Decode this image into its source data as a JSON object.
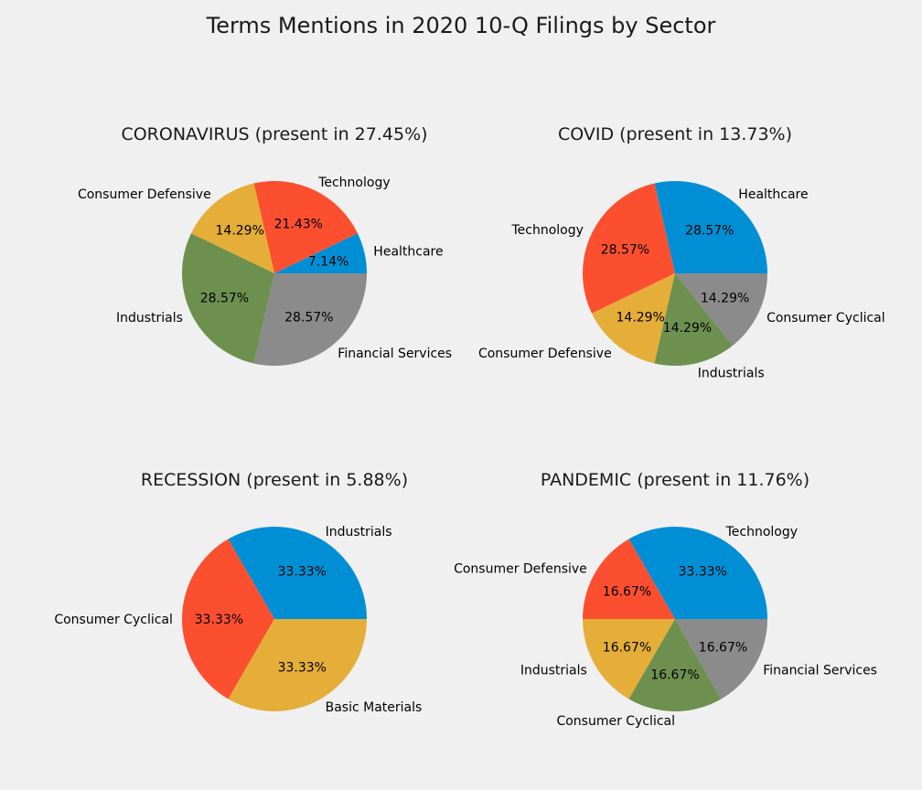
{
  "figure": {
    "title": "Terms Mentions in 2020 10-Q Filings by Sector"
  },
  "chart_data": [
    {
      "type": "pie",
      "title": "CORONAVIRUS (present in 27.45%)",
      "slices": [
        {
          "label": "Healthcare",
          "value": 7.14,
          "pct": "7.14%",
          "color": "#008fd5"
        },
        {
          "label": "Technology",
          "value": 21.43,
          "pct": "21.43%",
          "color": "#fc4f30"
        },
        {
          "label": "Consumer Defensive",
          "value": 14.29,
          "pct": "14.29%",
          "color": "#e5ae38"
        },
        {
          "label": "Industrials",
          "value": 28.57,
          "pct": "28.57%",
          "color": "#6d904f"
        },
        {
          "label": "Financial Services",
          "value": 28.57,
          "pct": "28.57%",
          "color": "#8b8b8b"
        }
      ]
    },
    {
      "type": "pie",
      "title": "COVID (present in 13.73%)",
      "slices": [
        {
          "label": "Healthcare",
          "value": 28.57,
          "pct": "28.57%",
          "color": "#008fd5"
        },
        {
          "label": "Technology",
          "value": 28.57,
          "pct": "28.57%",
          "color": "#fc4f30"
        },
        {
          "label": "Consumer Defensive",
          "value": 14.29,
          "pct": "14.29%",
          "color": "#e5ae38"
        },
        {
          "label": "Industrials",
          "value": 14.29,
          "pct": "14.29%",
          "color": "#6d904f"
        },
        {
          "label": "Consumer Cyclical",
          "value": 14.29,
          "pct": "14.29%",
          "color": "#8b8b8b"
        }
      ]
    },
    {
      "type": "pie",
      "title": "RECESSION (present in 5.88%)",
      "slices": [
        {
          "label": "Industrials",
          "value": 33.33,
          "pct": "33.33%",
          "color": "#008fd5"
        },
        {
          "label": "Consumer Cyclical",
          "value": 33.33,
          "pct": "33.33%",
          "color": "#fc4f30"
        },
        {
          "label": "Basic Materials",
          "value": 33.33,
          "pct": "33.33%",
          "color": "#e5ae38"
        }
      ]
    },
    {
      "type": "pie",
      "title": "PANDEMIC (present in 11.76%)",
      "slices": [
        {
          "label": "Technology",
          "value": 33.33,
          "pct": "33.33%",
          "color": "#008fd5"
        },
        {
          "label": "Consumer Defensive",
          "value": 16.67,
          "pct": "16.67%",
          "color": "#fc4f30"
        },
        {
          "label": "Industrials",
          "value": 16.67,
          "pct": "16.67%",
          "color": "#e5ae38"
        },
        {
          "label": "Consumer Cyclical",
          "value": 16.67,
          "pct": "16.67%",
          "color": "#6d904f"
        },
        {
          "label": "Financial Services",
          "value": 16.67,
          "pct": "16.67%",
          "color": "#8b8b8b"
        }
      ]
    }
  ]
}
